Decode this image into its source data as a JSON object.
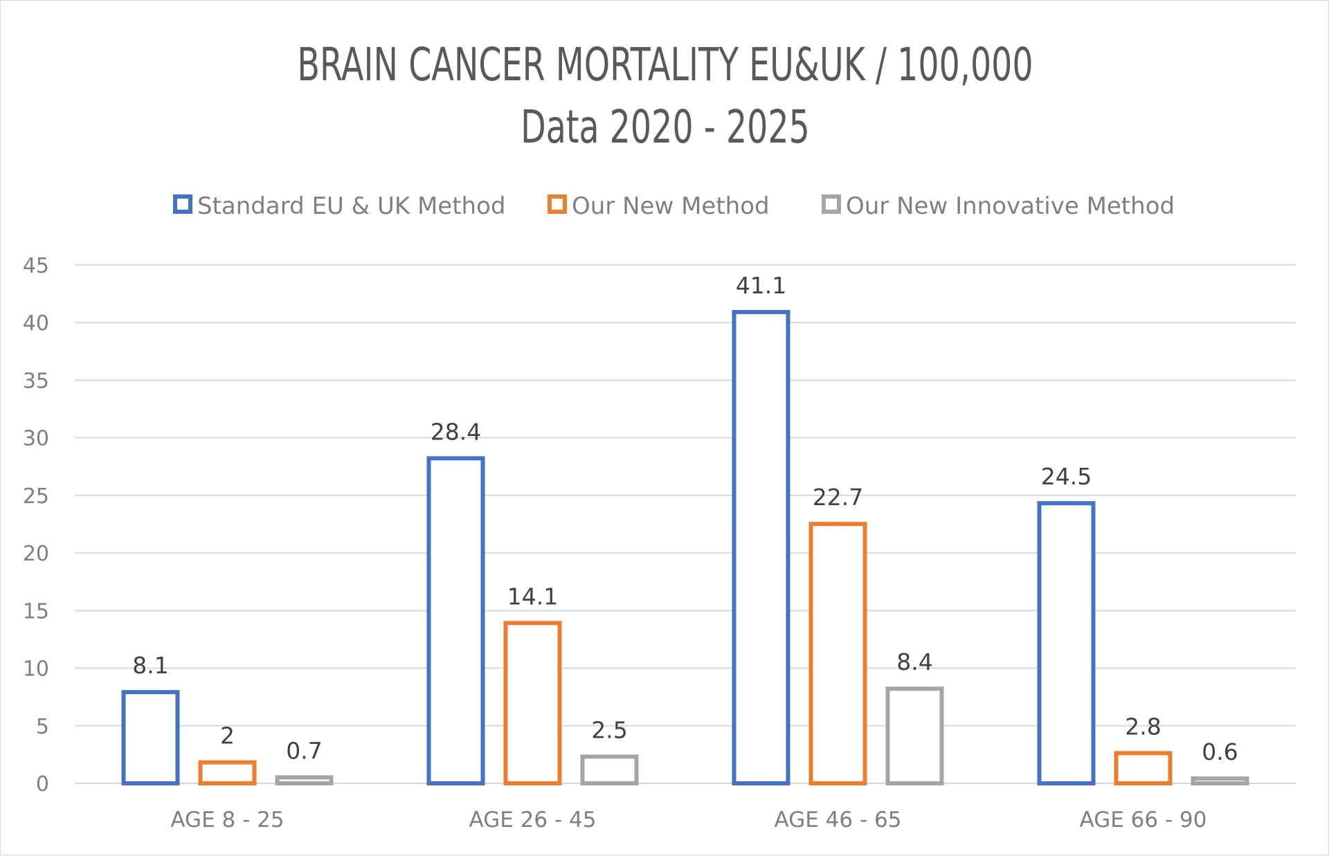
{
  "chart_data": {
    "type": "bar",
    "title": "BRAIN CANCER MORTALITY EU&UK / 100,000",
    "subtitle": "Data 2020 - 2025",
    "xlabel": "",
    "ylabel": "",
    "ylim": [
      0,
      45
    ],
    "yticks": [
      0,
      5,
      10,
      15,
      20,
      25,
      30,
      35,
      40,
      45
    ],
    "grid": true,
    "legend_position": "top",
    "categories": [
      "AGE 8 - 25",
      "AGE 26 - 45",
      "AGE 46 - 65",
      "AGE 66 - 90"
    ],
    "series": [
      {
        "name": "Standard EU & UK Method",
        "color": "#4472c4",
        "values": [
          8.1,
          28.4,
          41.1,
          24.5
        ],
        "labels": [
          "8.1",
          "28.4",
          "41.1",
          "24.5"
        ]
      },
      {
        "name": "Our New Method",
        "color": "#ed7d31",
        "values": [
          2,
          14.1,
          22.7,
          2.8
        ],
        "labels": [
          "2",
          "14.1",
          "22.7",
          "2.8"
        ]
      },
      {
        "name": "Our New Innovative Method",
        "color": "#a5a5a5",
        "values": [
          0.7,
          2.5,
          8.4,
          0.6
        ],
        "labels": [
          "0.7",
          "2.5",
          "8.4",
          "0.6"
        ]
      }
    ],
    "gridline_color": "#d9d9d9"
  }
}
